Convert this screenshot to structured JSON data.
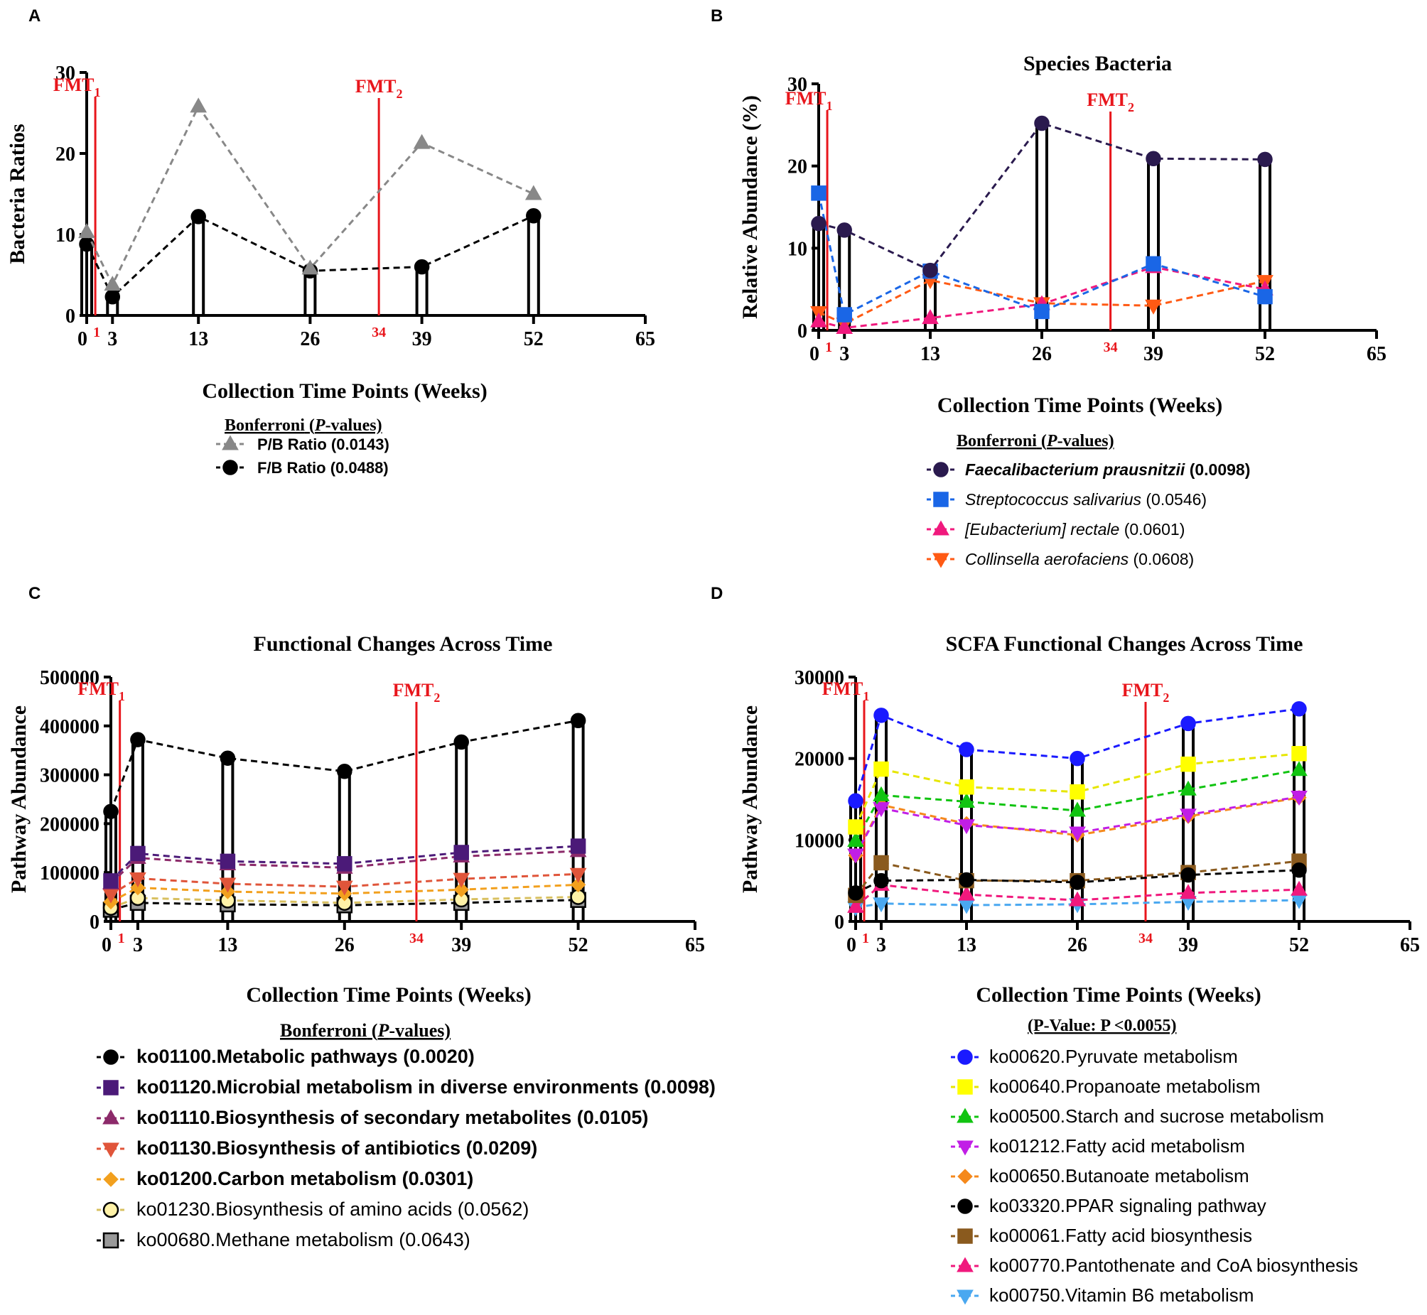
{
  "chart_data": [
    {
      "panel": "A",
      "type": "line",
      "title": "",
      "xlabel": "Collection Time Points (Weeks)",
      "ylabel": "Bacteria Ratios",
      "xlim": [
        0,
        65
      ],
      "ylim": [
        0,
        30
      ],
      "xticks": [
        "0",
        "3",
        "13",
        "26",
        "39",
        "52",
        "65"
      ],
      "yticks": [
        "0",
        "10",
        "20",
        "30"
      ],
      "x": [
        0,
        3,
        13,
        26,
        39,
        52
      ],
      "bar_series_index": 1,
      "series": [
        {
          "name": "P/B Ratio",
          "pvalue": "(0.0143)",
          "values": [
            10.3,
            3.8,
            25.8,
            5.8,
            21.3,
            15.0
          ],
          "color": "#888888",
          "marker": "triangle",
          "line": "#888888",
          "bold": true
        },
        {
          "name": "F/B Ratio",
          "pvalue": "(0.0488)",
          "values": [
            8.8,
            2.3,
            12.2,
            5.5,
            6.0,
            12.3
          ],
          "color": "#000000",
          "marker": "circle",
          "line": "#000000",
          "bold": true
        }
      ],
      "fmt": [
        {
          "label": "FMT",
          "sub": "1",
          "week": 1,
          "week_label": "1"
        },
        {
          "label": "FMT",
          "sub": "2",
          "week": 34,
          "week_label": "34"
        }
      ],
      "legend_title": "Bonferroni",
      "legend_title_p": "P",
      "legend_title_rest": "-values)"
    },
    {
      "panel": "B",
      "type": "line",
      "title": "Species Bacteria",
      "xlabel": "Collection Time Points (Weeks)",
      "ylabel": "Relative Abundance (%)",
      "xlim": [
        0,
        65
      ],
      "ylim": [
        0,
        30
      ],
      "xticks": [
        "0",
        "3",
        "13",
        "26",
        "39",
        "52",
        "65"
      ],
      "yticks": [
        "0",
        "10",
        "20",
        "30"
      ],
      "x": [
        0,
        3,
        13,
        26,
        39,
        52
      ],
      "bar_series_index": 0,
      "series": [
        {
          "name": "Faecalibacterium prausnitzii",
          "pvalue": "(0.0098)",
          "values": [
            13.0,
            12.2,
            7.3,
            25.2,
            20.9,
            20.8
          ],
          "color": "#2a1a4e",
          "marker": "circle",
          "line": "#2a1a4e",
          "bold": true,
          "italic": true
        },
        {
          "name": "Streptococcus salivarius",
          "pvalue": "(0.0546)",
          "values": [
            16.7,
            1.9,
            7.2,
            2.3,
            8.1,
            4.1
          ],
          "color": "#1a66e6",
          "marker": "square",
          "line": "#1a66e6",
          "bold": false,
          "italic": true
        },
        {
          "name": "[Eubacterium] rectale",
          "pvalue": "(0.0601)",
          "values": [
            1.1,
            0.3,
            1.5,
            3.2,
            7.7,
            5.0
          ],
          "color": "#f0197d",
          "marker": "triangle",
          "line": "#f0197d",
          "bold": false,
          "italic": true
        },
        {
          "name": "Collinsella aerofaciens",
          "pvalue": "(0.0608)",
          "values": [
            2.2,
            0.8,
            6.1,
            3.3,
            3.0,
            6.0
          ],
          "color": "#ff5a14",
          "marker": "triangle-down",
          "line": "#ff5a14",
          "bold": false,
          "italic": true
        }
      ],
      "fmt": [
        {
          "label": "FMT",
          "sub": "1",
          "week": 1,
          "week_label": "1"
        },
        {
          "label": "FMT",
          "sub": "2",
          "week": 34,
          "week_label": "34"
        }
      ],
      "legend_title": "Bonferroni",
      "legend_title_p": "P",
      "legend_title_rest": "-values)"
    },
    {
      "panel": "C",
      "type": "line",
      "title": "Functional Changes Across Time",
      "xlabel": "Collection Time Points (Weeks)",
      "ylabel": "Pathway Abundance",
      "xlim": [
        0,
        65
      ],
      "ylim": [
        0,
        500000
      ],
      "xticks": [
        "0",
        "3",
        "13",
        "26",
        "39",
        "52",
        "65"
      ],
      "yticks": [
        "0",
        "100000",
        "200000",
        "300000",
        "400000",
        "500000"
      ],
      "x": [
        0,
        3,
        13,
        26,
        39,
        52
      ],
      "bar_series_index": 0,
      "series": [
        {
          "name": "ko01100.Metabolic pathways",
          "pvalue": "(0.0020)",
          "values": [
            225000,
            372000,
            334000,
            307000,
            367000,
            411000
          ],
          "color": "#000000",
          "marker": "circle",
          "line": "#000000",
          "bold": true
        },
        {
          "name": "ko01120.Microbial metabolism in diverse environments",
          "pvalue": "(0.0098)",
          "values": [
            83000,
            139000,
            123000,
            118000,
            141000,
            154000
          ],
          "color": "#4b1a78",
          "marker": "square",
          "line": "#4b1a78",
          "bold": true
        },
        {
          "name": "ko01110.Biosynthesis of secondary metabolites",
          "pvalue": "(0.0105)",
          "values": [
            78000,
            130000,
            117000,
            110000,
            133000,
            144000
          ],
          "color": "#8c2a6a",
          "marker": "triangle",
          "line": "#8c2a6a",
          "bold": true
        },
        {
          "name": "ko01130.Biosynthesis of antibiotics",
          "pvalue": "(0.0209)",
          "values": [
            55000,
            88000,
            77000,
            71000,
            87000,
            97000
          ],
          "color": "#e0553a",
          "marker": "triangle-down",
          "line": "#e0553a",
          "bold": true
        },
        {
          "name": "ko01200.Carbon metabolism",
          "pvalue": "(0.0301)",
          "values": [
            40000,
            69000,
            61000,
            57000,
            65000,
            75000
          ],
          "color": "#f2a01e",
          "marker": "diamond",
          "line": "#f2a01e",
          "bold": true
        },
        {
          "name": "ko01230.Biosynthesis of amino acids",
          "pvalue": "(0.0562)",
          "values": [
            28000,
            48000,
            43000,
            38000,
            45000,
            50000
          ],
          "color": "#fff2a8",
          "marker": "circle-outline",
          "line": "#d8c060",
          "bold": false
        },
        {
          "name": "ko00680.Methane metabolism",
          "pvalue": "(0.0643)",
          "values": [
            24000,
            38000,
            35000,
            33000,
            38000,
            44000
          ],
          "color": "#999999",
          "marker": "square-outline",
          "line": "#000000",
          "bold": false
        }
      ],
      "fmt": [
        {
          "label": "FMT",
          "sub": "1",
          "week": 1,
          "week_label": "1"
        },
        {
          "label": "FMT",
          "sub": "2",
          "week": 34,
          "week_label": "34"
        }
      ],
      "legend_title": "Bonferroni",
      "legend_title_p": "P",
      "legend_title_rest": "-values)"
    },
    {
      "panel": "D",
      "type": "line",
      "title": "SCFA Functional Changes Across Time",
      "xlabel": "Collection Time Points (Weeks)",
      "ylabel": "Pathway Abundance",
      "xlim": [
        0,
        65
      ],
      "ylim": [
        0,
        30000
      ],
      "xticks": [
        "0",
        "3",
        "13",
        "26",
        "39",
        "52",
        "65"
      ],
      "yticks": [
        "0",
        "10000",
        "20000",
        "30000"
      ],
      "x": [
        0,
        3,
        13,
        26,
        39,
        52
      ],
      "bar_series_index": 0,
      "series": [
        {
          "name": "ko00620.Pyruvate metabolism",
          "values": [
            14800,
            25300,
            21100,
            20000,
            24300,
            26100
          ],
          "color": "#1a1aff",
          "marker": "circle",
          "line": "#1a1aff"
        },
        {
          "name": "ko00640.Propanoate metabolism",
          "values": [
            11600,
            18700,
            16500,
            15900,
            19300,
            20600
          ],
          "color": "#ffff00",
          "marker": "square",
          "line": "#e6e600"
        },
        {
          "name": "ko00500.Starch and sucrose metabolism",
          "values": [
            9900,
            15500,
            14700,
            13600,
            16200,
            18600
          ],
          "color": "#11c411",
          "marker": "triangle",
          "line": "#11c411"
        },
        {
          "name": "ko01212.Fatty acid metabolism",
          "values": [
            8200,
            13900,
            11800,
            10900,
            13100,
            15300
          ],
          "color": "#c11ee6",
          "marker": "triangle-down",
          "line": "#c11ee6"
        },
        {
          "name": "ko00650.Butanoate metabolism",
          "values": [
            8100,
            14300,
            12000,
            10600,
            12900,
            15200
          ],
          "color": "#f5891c",
          "marker": "diamond",
          "line": "#f5891c"
        },
        {
          "name": "ko03320.PPAR signaling pathway",
          "values": [
            3500,
            5000,
            5100,
            4800,
            5700,
            6300
          ],
          "color": "#000000",
          "marker": "circle",
          "line": "#000000"
        },
        {
          "name": "ko00061.Fatty acid biosynthesis",
          "values": [
            3200,
            7200,
            5000,
            5000,
            6000,
            7400
          ],
          "color": "#8a5a1e",
          "marker": "square",
          "line": "#8a5a1e"
        },
        {
          "name": "ko00770.Pantothenate and CoA biosynthesis",
          "values": [
            1800,
            4500,
            3300,
            2600,
            3500,
            3900
          ],
          "color": "#f0197d",
          "marker": "triangle",
          "line": "#f0197d"
        },
        {
          "name": "ko00750.Vitamin B6 metabolism",
          "values": [
            1700,
            2200,
            2000,
            2100,
            2400,
            2600
          ],
          "color": "#4aa8f0",
          "marker": "triangle-down",
          "line": "#4aa8f0"
        }
      ],
      "fmt": [
        {
          "label": "FMT",
          "sub": "1",
          "week": 1,
          "week_label": "1"
        },
        {
          "label": "FMT",
          "sub": "2",
          "week": 34,
          "week_label": "34"
        }
      ],
      "legend_title": "(P-Value: P <0.0055)"
    }
  ]
}
